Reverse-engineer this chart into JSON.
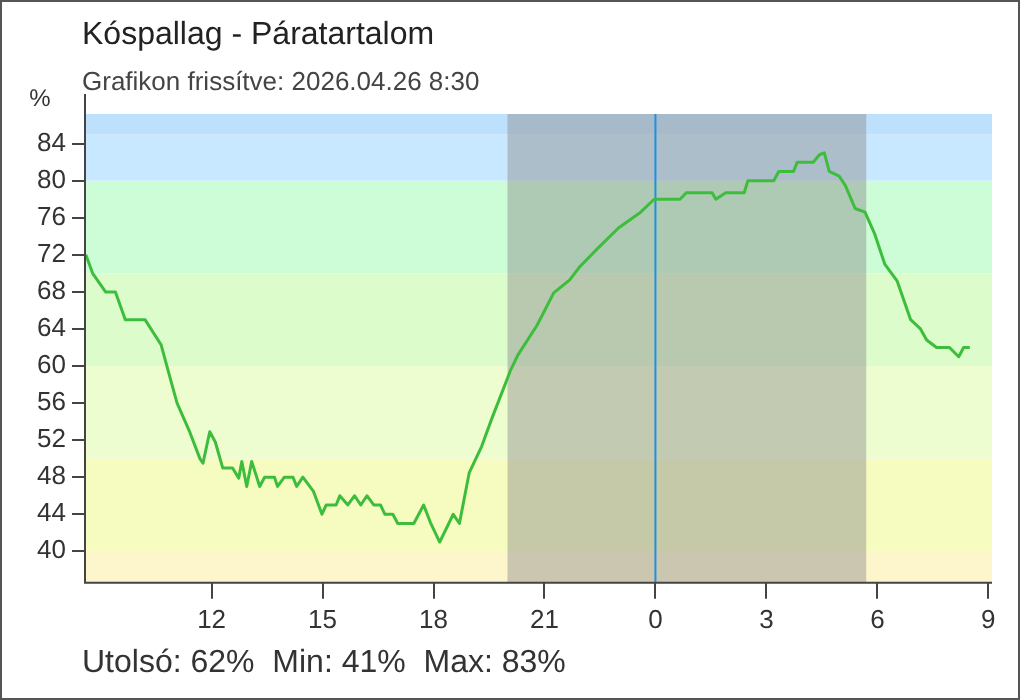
{
  "chart_data": {
    "type": "line",
    "title": "Kóspallag - Páratartalom",
    "subtitle": "Grafikon frissítve: 2026.04.26 8:30",
    "ylabel": "%",
    "annotations": [
      "Utolsó: 62%  Min: 41%  Max: 83%"
    ],
    "x": [
      "2026-04-25T08:36",
      "2026-04-25T08:47",
      "2026-04-25T09:08",
      "2026-04-25T09:24",
      "2026-04-25T09:40",
      "2026-04-25T10:12",
      "2026-04-25T10:38",
      "2026-04-25T10:54",
      "2026-04-25T11:04",
      "2026-04-25T11:25",
      "2026-04-25T11:41",
      "2026-04-25T11:46",
      "2026-04-25T11:57",
      "2026-04-25T12:06",
      "2026-04-25T12:18",
      "2026-04-25T12:34",
      "2026-04-25T12:44",
      "2026-04-25T12:49",
      "2026-04-25T12:57",
      "2026-04-25T13:05",
      "2026-04-25T13:18",
      "2026-04-25T13:26",
      "2026-04-25T13:42",
      "2026-04-25T13:47",
      "2026-04-25T13:58",
      "2026-04-25T14:12",
      "2026-04-25T14:18",
      "2026-04-25T14:28",
      "2026-04-25T14:45",
      "2026-04-25T14:59",
      "2026-04-25T15:06",
      "2026-04-25T15:22",
      "2026-04-25T15:28",
      "2026-04-25T15:41",
      "2026-04-25T15:52",
      "2026-04-25T16:02",
      "2026-04-25T16:12",
      "2026-04-25T16:23",
      "2026-04-25T16:34",
      "2026-04-25T16:41",
      "2026-04-25T16:54",
      "2026-04-25T17:02",
      "2026-04-25T17:28",
      "2026-04-25T17:44",
      "2026-04-25T17:55",
      "2026-04-25T18:10",
      "2026-04-25T18:32",
      "2026-04-25T18:42",
      "2026-04-25T18:58",
      "2026-04-25T19:18",
      "2026-04-25T19:35",
      "2026-04-25T20:06",
      "2026-04-25T20:17",
      "2026-04-25T20:48",
      "2026-04-25T21:15",
      "2026-04-25T21:41",
      "2026-04-25T21:57",
      "2026-04-25T22:28",
      "2026-04-25T23:00",
      "2026-04-25T23:36",
      "2026-04-25T23:58",
      "2026-04-26T00:40",
      "2026-04-26T00:50",
      "2026-04-26T01:32",
      "2026-04-26T01:38",
      "2026-04-26T01:54",
      "2026-04-26T02:24",
      "2026-04-26T02:30",
      "2026-04-26T03:12",
      "2026-04-26T03:20",
      "2026-04-26T03:44",
      "2026-04-26T03:50",
      "2026-04-26T04:16",
      "2026-04-26T04:26",
      "2026-04-26T04:34",
      "2026-04-26T04:42",
      "2026-04-26T04:58",
      "2026-04-26T05:08",
      "2026-04-26T05:24",
      "2026-04-26T05:40",
      "2026-04-26T05:56",
      "2026-04-26T06:12",
      "2026-04-26T06:32",
      "2026-04-26T06:54",
      "2026-04-26T07:10",
      "2026-04-26T07:20",
      "2026-04-26T07:36",
      "2026-04-26T07:57",
      "2026-04-26T08:12",
      "2026-04-26T08:20",
      "2026-04-26T08:30"
    ],
    "series": [
      {
        "color": "#3cbe3c",
        "values": [
          72,
          70,
          68,
          68,
          65,
          65,
          62.3,
          58.4,
          56,
          52.8,
          50,
          49.5,
          52.9,
          51.8,
          49,
          49,
          47.9,
          49.7,
          47,
          49.7,
          47,
          48,
          48,
          47,
          48,
          48,
          47,
          48,
          46.5,
          44,
          45,
          45,
          46,
          45,
          46,
          45,
          46,
          45,
          45,
          44,
          44,
          43,
          43,
          45,
          43.1,
          41,
          44,
          43,
          48.5,
          51.3,
          54.4,
          59.7,
          61.2,
          64.4,
          67.9,
          69.3,
          70.7,
          72.8,
          74.9,
          76.6,
          78,
          78,
          78.7,
          78.7,
          78,
          78.7,
          78.7,
          80,
          80,
          81,
          81,
          82,
          82,
          82.8,
          83,
          81,
          80.5,
          79.5,
          77,
          76.6,
          74.2,
          71,
          69.2,
          65,
          64,
          62.8,
          62,
          62,
          61,
          62,
          62
        ]
      }
    ],
    "xlim": [
      "2026-04-25T08:33",
      "2026-04-26T09:06"
    ],
    "xticks": [
      {
        "value": "2026-04-25T12:00",
        "label": "12"
      },
      {
        "value": "2026-04-25T15:00",
        "label": "15"
      },
      {
        "value": "2026-04-25T18:00",
        "label": "18"
      },
      {
        "value": "2026-04-25T21:00",
        "label": "21"
      },
      {
        "value": "2026-04-26T00:00",
        "label": "0"
      },
      {
        "value": "2026-04-26T03:00",
        "label": "3"
      },
      {
        "value": "2026-04-26T06:00",
        "label": "6"
      },
      {
        "value": "2026-04-26T09:00",
        "label": "9"
      }
    ],
    "ylim": [
      36.6,
      87.2
    ],
    "yticks": [
      40,
      44,
      48,
      52,
      56,
      60,
      64,
      68,
      72,
      76,
      80,
      84
    ],
    "bands": [
      {
        "axis": "y",
        "from": 36.6,
        "to": 40,
        "color": "#fdf6cc"
      },
      {
        "axis": "y",
        "from": 40,
        "to": 50,
        "color": "#f6fcc0"
      },
      {
        "axis": "y",
        "from": 50,
        "to": 60,
        "color": "#eefdd0"
      },
      {
        "axis": "y",
        "from": 60,
        "to": 70,
        "color": "#dcfccc"
      },
      {
        "axis": "y",
        "from": 70,
        "to": 80,
        "color": "#ccfdd6"
      },
      {
        "axis": "y",
        "from": 80,
        "to": 85,
        "color": "#c8e8ff"
      },
      {
        "axis": "y",
        "from": 85,
        "to": 87.2,
        "color": "#bde0fc"
      },
      {
        "axis": "x",
        "from": "2026-04-25T20:00",
        "to": "2026-04-26T05:42",
        "color": "#8c8c8c"
      }
    ],
    "ref_lines": [
      {
        "axis": "x",
        "value": "2026-04-26T00:00",
        "color": "#1e90e0"
      }
    ],
    "grid": false,
    "legend": false,
    "marker": "none",
    "line_style": "solid"
  }
}
